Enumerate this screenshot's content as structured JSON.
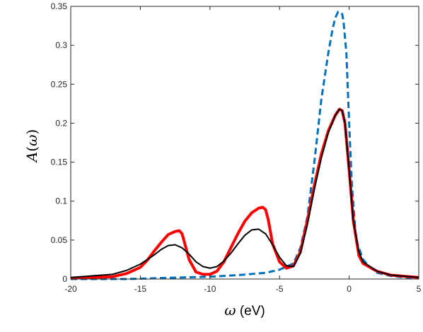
{
  "chart_data": {
    "type": "line",
    "xlabel_symbol": "ω",
    "xlabel_unit": " (eV)",
    "ylabel_prefix": "A",
    "ylabel_open": "(",
    "ylabel_symbol": "ω",
    "ylabel_close": ")",
    "xlim": [
      -20,
      5
    ],
    "ylim": [
      0,
      0.35
    ],
    "xticks": [
      -20,
      -15,
      -10,
      -5,
      0,
      5
    ],
    "xtick_labels": [
      "-20",
      "-15",
      "-10",
      "-5",
      "0",
      "5"
    ],
    "yticks": [
      0,
      0.05,
      0.1,
      0.15,
      0.2,
      0.25,
      0.3,
      0.35
    ],
    "ytick_labels": [
      "0",
      "0.05",
      "0.1",
      "0.15",
      "0.2",
      "0.25",
      "0.3",
      "0.35"
    ],
    "grid": false,
    "series": [
      {
        "color": "#0072bd",
        "style": "dashed",
        "width": 3,
        "x": [
          -20,
          -16,
          -14,
          -12,
          -10,
          -8,
          -6,
          -5,
          -4,
          -3.5,
          -3,
          -2.5,
          -2,
          -1.5,
          -1.2,
          -1,
          -0.8,
          -0.6,
          -0.5,
          -0.4,
          -0.2,
          0,
          0.2,
          0.5,
          1,
          1.5,
          2,
          3,
          4,
          5
        ],
        "y": [
          0,
          0,
          0.001,
          0.002,
          0.003,
          0.005,
          0.008,
          0.012,
          0.02,
          0.04,
          0.08,
          0.15,
          0.23,
          0.29,
          0.32,
          0.335,
          0.343,
          0.342,
          0.34,
          0.33,
          0.29,
          0.2,
          0.12,
          0.05,
          0.025,
          0.015,
          0.008,
          0.004,
          0.002,
          0.001
        ]
      },
      {
        "color": "#ff0000",
        "style": "solid",
        "width": 4,
        "x": [
          -20,
          -17,
          -16,
          -15,
          -14.5,
          -14,
          -13.5,
          -13,
          -12.5,
          -12.2,
          -12,
          -11.8,
          -11.5,
          -11,
          -10.5,
          -10,
          -9.5,
          -9,
          -8.5,
          -8,
          -7.5,
          -7,
          -6.5,
          -6.2,
          -6,
          -5.8,
          -5.5,
          -5,
          -4.5,
          -4,
          -3.5,
          -3,
          -2.5,
          -2,
          -1.5,
          -1,
          -0.7,
          -0.5,
          -0.3,
          0,
          0.3,
          0.7,
          1,
          2,
          3,
          5
        ],
        "y": [
          0.001,
          0.003,
          0.007,
          0.015,
          0.024,
          0.036,
          0.047,
          0.057,
          0.061,
          0.062,
          0.058,
          0.045,
          0.025,
          0.009,
          0.006,
          0.006,
          0.01,
          0.022,
          0.04,
          0.058,
          0.074,
          0.085,
          0.091,
          0.092,
          0.089,
          0.075,
          0.045,
          0.022,
          0.014,
          0.017,
          0.035,
          0.075,
          0.12,
          0.16,
          0.19,
          0.21,
          0.218,
          0.216,
          0.2,
          0.14,
          0.075,
          0.03,
          0.02,
          0.01,
          0.005,
          0.002
        ]
      },
      {
        "color": "#000000",
        "style": "solid",
        "width": 2,
        "x": [
          -20,
          -17,
          -16,
          -15,
          -14,
          -13.5,
          -13,
          -12.5,
          -12,
          -11.5,
          -11,
          -10.5,
          -10,
          -9.5,
          -9,
          -8.5,
          -8,
          -7.5,
          -7,
          -6.5,
          -6,
          -5.5,
          -5,
          -4.5,
          -4,
          -3.5,
          -3,
          -2.5,
          -2,
          -1.5,
          -1,
          -0.7,
          -0.5,
          -0.3,
          0,
          0.3,
          0.7,
          1,
          2,
          3,
          5
        ],
        "y": [
          0.002,
          0.006,
          0.011,
          0.019,
          0.031,
          0.038,
          0.043,
          0.044,
          0.04,
          0.032,
          0.022,
          0.016,
          0.014,
          0.016,
          0.023,
          0.033,
          0.045,
          0.056,
          0.063,
          0.064,
          0.058,
          0.044,
          0.028,
          0.017,
          0.016,
          0.033,
          0.07,
          0.115,
          0.155,
          0.188,
          0.21,
          0.218,
          0.216,
          0.2,
          0.14,
          0.075,
          0.035,
          0.022,
          0.01,
          0.005,
          0.002
        ]
      }
    ]
  }
}
